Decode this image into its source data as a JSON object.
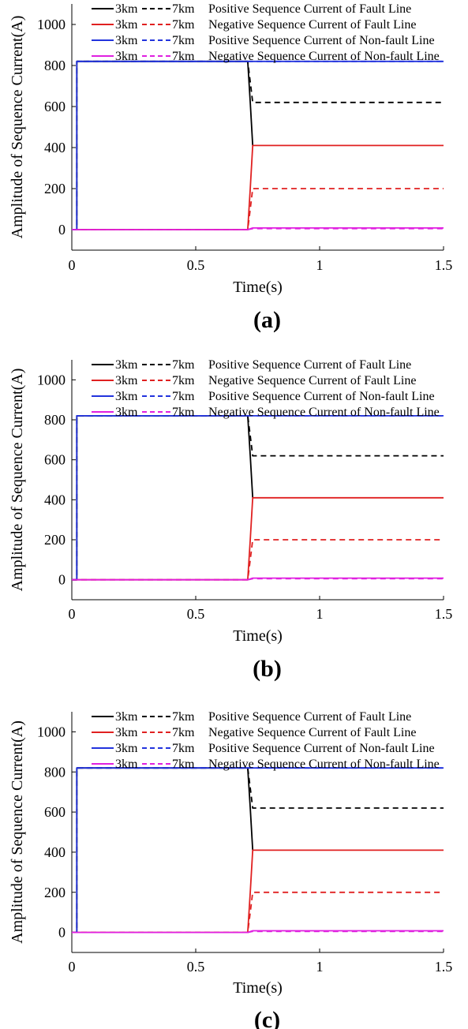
{
  "chart_data": [
    {
      "type": "line",
      "caption": "(a)",
      "xlabel": "Time(s)",
      "ylabel": "Amplitude of Sequence Current(A)",
      "xlim": [
        0,
        1.5
      ],
      "ylim": [
        -100,
        1100
      ],
      "xticks": [
        "0",
        "0.5",
        "1",
        "1.5"
      ],
      "yticks": [
        "0",
        "200",
        "400",
        "600",
        "800",
        "1000"
      ],
      "legend": {
        "placement": "top",
        "entries": [
          {
            "solid": "3km",
            "dashed": "7km",
            "label": "Positive Sequence Current of Fault Line"
          },
          {
            "solid": "3km",
            "dashed": "7km",
            "label": "Negative Sequence Current of Fault Line"
          },
          {
            "solid": "3km",
            "dashed": "7km",
            "label": "Positive Sequence Current of Non-fault Line"
          },
          {
            "solid": "3km",
            "dashed": "7km",
            "label": "Negative Sequence Current of Non-fault Line"
          }
        ]
      },
      "series": [
        {
          "name": "3km Positive Sequence Current of Fault Line",
          "color": "#000000",
          "dash": false,
          "points": [
            [
              0,
              0
            ],
            [
              0.02,
              0
            ],
            [
              0.02,
              820
            ],
            [
              0.71,
              820
            ],
            [
              0.72,
              620
            ],
            [
              0.73,
              410
            ]
          ]
        },
        {
          "name": "7km Positive Sequence Current of Fault Line",
          "color": "#000000",
          "dash": true,
          "points": [
            [
              0,
              0
            ],
            [
              0.02,
              0
            ],
            [
              0.02,
              820
            ],
            [
              0.71,
              820
            ],
            [
              0.72,
              720
            ],
            [
              0.73,
              620
            ],
            [
              1.5,
              620
            ]
          ]
        },
        {
          "name": "3km Negative Sequence Current of Fault Line",
          "color": "#e02020",
          "dash": false,
          "points": [
            [
              0,
              0
            ],
            [
              0.71,
              0
            ],
            [
              0.72,
              200
            ],
            [
              0.73,
              410
            ],
            [
              1.5,
              410
            ]
          ]
        },
        {
          "name": "7km Negative Sequence Current of Fault Line",
          "color": "#e02020",
          "dash": true,
          "points": [
            [
              0,
              0
            ],
            [
              0.71,
              0
            ],
            [
              0.72,
              100
            ],
            [
              0.73,
              200
            ],
            [
              1.5,
              200
            ]
          ]
        },
        {
          "name": "3km Positive Sequence Current of Non-fault Line",
          "color": "#2233dd",
          "dash": false,
          "points": [
            [
              0,
              0
            ],
            [
              0.02,
              0
            ],
            [
              0.02,
              820
            ],
            [
              1.5,
              820
            ]
          ]
        },
        {
          "name": "7km Positive Sequence Current of Non-fault Line",
          "color": "#2233dd",
          "dash": true,
          "points": [
            [
              0.02,
              820
            ],
            [
              1.5,
              820
            ]
          ]
        },
        {
          "name": "3km Negative Sequence Current of Non-fault Line",
          "color": "#e020e0",
          "dash": false,
          "points": [
            [
              0,
              0
            ],
            [
              0.71,
              0
            ],
            [
              0.73,
              8
            ],
            [
              1.5,
              8
            ]
          ]
        },
        {
          "name": "7km Negative Sequence Current of Non-fault Line",
          "color": "#e020e0",
          "dash": true,
          "points": [
            [
              0.71,
              0
            ],
            [
              0.73,
              5
            ],
            [
              1.5,
              5
            ]
          ]
        }
      ]
    },
    {
      "type": "line",
      "caption": "(b)",
      "xlabel": "Time(s)",
      "ylabel": "Amplitude of Sequence Current(A)",
      "xlim": [
        0,
        1.5
      ],
      "ylim": [
        -100,
        1100
      ],
      "xticks": [
        "0",
        "0.5",
        "1",
        "1.5"
      ],
      "yticks": [
        "0",
        "200",
        "400",
        "600",
        "800",
        "1000"
      ],
      "legend": {
        "placement": "top",
        "entries": [
          {
            "solid": "3km",
            "dashed": "7km",
            "label": "Positive Sequence Current of Fault Line"
          },
          {
            "solid": "3km",
            "dashed": "7km",
            "label": "Negative Sequence Current of Fault Line"
          },
          {
            "solid": "3km",
            "dashed": "7km",
            "label": "Positive Sequence Current of Non-fault Line"
          },
          {
            "solid": "3km",
            "dashed": "7km",
            "label": "Negative Sequence Current of Non-fault Line"
          }
        ]
      },
      "series": [
        {
          "name": "3km Positive Sequence Current of Fault Line",
          "color": "#000000",
          "dash": false,
          "points": [
            [
              0,
              0
            ],
            [
              0.02,
              0
            ],
            [
              0.02,
              820
            ],
            [
              0.71,
              820
            ],
            [
              0.72,
              620
            ],
            [
              0.73,
              410
            ]
          ]
        },
        {
          "name": "7km Positive Sequence Current of Fault Line",
          "color": "#000000",
          "dash": true,
          "points": [
            [
              0,
              0
            ],
            [
              0.02,
              0
            ],
            [
              0.02,
              820
            ],
            [
              0.71,
              820
            ],
            [
              0.72,
              720
            ],
            [
              0.73,
              620
            ],
            [
              1.5,
              620
            ]
          ]
        },
        {
          "name": "3km Negative Sequence Current of Fault Line",
          "color": "#e02020",
          "dash": false,
          "points": [
            [
              0,
              0
            ],
            [
              0.71,
              0
            ],
            [
              0.72,
              200
            ],
            [
              0.73,
              410
            ],
            [
              1.5,
              410
            ]
          ]
        },
        {
          "name": "7km Negative Sequence Current of Fault Line",
          "color": "#e02020",
          "dash": true,
          "points": [
            [
              0,
              0
            ],
            [
              0.71,
              0
            ],
            [
              0.72,
              100
            ],
            [
              0.73,
              200
            ],
            [
              1.5,
              200
            ]
          ]
        },
        {
          "name": "3km Positive Sequence Current of Non-fault Line",
          "color": "#2233dd",
          "dash": false,
          "points": [
            [
              0,
              0
            ],
            [
              0.02,
              0
            ],
            [
              0.02,
              820
            ],
            [
              1.5,
              820
            ]
          ]
        },
        {
          "name": "7km Positive Sequence Current of Non-fault Line",
          "color": "#2233dd",
          "dash": true,
          "points": [
            [
              0.02,
              820
            ],
            [
              1.5,
              820
            ]
          ]
        },
        {
          "name": "3km Negative Sequence Current of Non-fault Line",
          "color": "#e020e0",
          "dash": false,
          "points": [
            [
              0,
              0
            ],
            [
              0.71,
              0
            ],
            [
              0.73,
              8
            ],
            [
              1.5,
              8
            ]
          ]
        },
        {
          "name": "7km Negative Sequence Current of Non-fault Line",
          "color": "#e020e0",
          "dash": true,
          "points": [
            [
              0.71,
              0
            ],
            [
              0.73,
              5
            ],
            [
              1.5,
              5
            ]
          ]
        }
      ]
    },
    {
      "type": "line",
      "caption": "(c)",
      "xlabel": "Time(s)",
      "ylabel": "Amplitude of Sequence Current(A)",
      "xlim": [
        0,
        1.5
      ],
      "ylim": [
        -100,
        1100
      ],
      "xticks": [
        "0",
        "0.5",
        "1",
        "1.5"
      ],
      "yticks": [
        "0",
        "200",
        "400",
        "600",
        "800",
        "1000"
      ],
      "legend": {
        "placement": "top",
        "entries": [
          {
            "solid": "3km",
            "dashed": "7km",
            "label": "Positive Sequence Current of Fault Line"
          },
          {
            "solid": "3km",
            "dashed": "7km",
            "label": "Negative Sequence Current of Fault Line"
          },
          {
            "solid": "3km",
            "dashed": "7km",
            "label": "Positive Sequence Current of Non-fault Line"
          },
          {
            "solid": "3km",
            "dashed": "7km",
            "label": "Negative Sequence Current of Non-fault Line"
          }
        ]
      },
      "series": [
        {
          "name": "3km Positive Sequence Current of Fault Line",
          "color": "#000000",
          "dash": false,
          "points": [
            [
              0,
              0
            ],
            [
              0.02,
              0
            ],
            [
              0.02,
              820
            ],
            [
              0.71,
              820
            ],
            [
              0.72,
              620
            ],
            [
              0.73,
              410
            ]
          ]
        },
        {
          "name": "7km Positive Sequence Current of Fault Line",
          "color": "#000000",
          "dash": true,
          "points": [
            [
              0,
              0
            ],
            [
              0.02,
              0
            ],
            [
              0.02,
              820
            ],
            [
              0.71,
              820
            ],
            [
              0.72,
              720
            ],
            [
              0.73,
              620
            ],
            [
              1.5,
              620
            ]
          ]
        },
        {
          "name": "3km Negative Sequence Current of Fault Line",
          "color": "#e02020",
          "dash": false,
          "points": [
            [
              0,
              0
            ],
            [
              0.71,
              0
            ],
            [
              0.72,
              200
            ],
            [
              0.73,
              410
            ],
            [
              1.5,
              410
            ]
          ]
        },
        {
          "name": "7km Negative Sequence Current of Fault Line",
          "color": "#e02020",
          "dash": true,
          "points": [
            [
              0,
              0
            ],
            [
              0.71,
              0
            ],
            [
              0.72,
              100
            ],
            [
              0.73,
              200
            ],
            [
              1.5,
              200
            ]
          ]
        },
        {
          "name": "3km Positive Sequence Current of Non-fault Line",
          "color": "#2233dd",
          "dash": false,
          "points": [
            [
              0,
              0
            ],
            [
              0.02,
              0
            ],
            [
              0.02,
              820
            ],
            [
              1.5,
              820
            ]
          ]
        },
        {
          "name": "7km Positive Sequence Current of Non-fault Line",
          "color": "#2233dd",
          "dash": true,
          "points": [
            [
              0.02,
              820
            ],
            [
              1.5,
              820
            ]
          ]
        },
        {
          "name": "3km Negative Sequence Current of Non-fault Line",
          "color": "#e020e0",
          "dash": false,
          "points": [
            [
              0,
              0
            ],
            [
              0.71,
              0
            ],
            [
              0.73,
              8
            ],
            [
              1.5,
              8
            ]
          ]
        },
        {
          "name": "7km Negative Sequence Current of Non-fault Line",
          "color": "#e020e0",
          "dash": true,
          "points": [
            [
              0.71,
              0
            ],
            [
              0.73,
              5
            ],
            [
              1.5,
              5
            ]
          ]
        }
      ]
    }
  ]
}
